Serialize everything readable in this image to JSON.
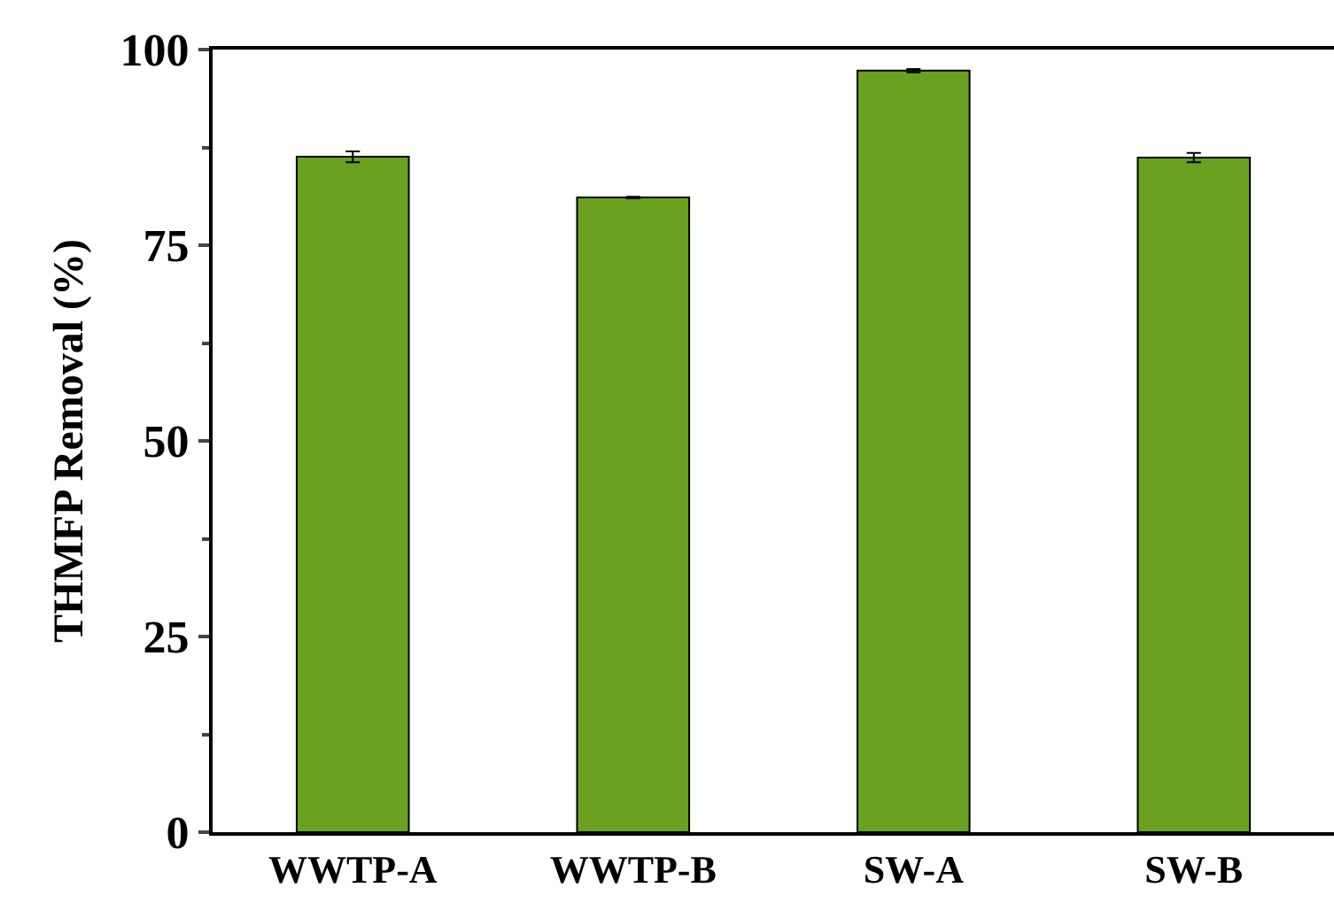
{
  "chart_data": {
    "type": "bar",
    "ylabel": "THMFP Removal (%)",
    "categories": [
      "WWTP-A",
      "WWTP-B",
      "SW-A",
      "SW-B"
    ],
    "values": [
      86.3,
      81.1,
      97.3,
      86.2
    ],
    "errors": [
      0.7,
      0.1,
      0.2,
      0.6
    ],
    "color": "#6aa121",
    "ylim": [
      0,
      100
    ],
    "yticks": [
      0,
      25,
      50,
      75,
      100
    ],
    "grid": false
  }
}
